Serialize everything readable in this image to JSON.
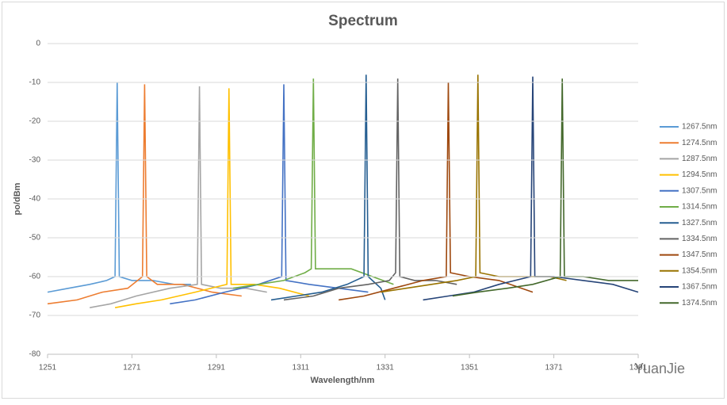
{
  "chart_data": {
    "type": "line",
    "title": "Spectrum",
    "x_label": "Wavelength/nm",
    "y_label": "po/dBm",
    "watermark": "YuanJie",
    "xlim": [
      1251,
      1391
    ],
    "xticks": [
      1251,
      1271,
      1291,
      1311,
      1331,
      1351,
      1371,
      1391
    ],
    "ylim": [
      -80,
      0
    ],
    "yticks": [
      -80,
      -70,
      -60,
      -50,
      -40,
      -30,
      -20,
      -10,
      0
    ],
    "grid": true,
    "legend": "right",
    "series": [
      {
        "name": "1267.5nm",
        "color": "#5b9bd5",
        "x": [
          1251,
          1256,
          1261,
          1265,
          1267,
          1267.5,
          1268,
          1271,
          1276,
          1281,
          1285
        ],
        "values": [
          -64,
          -63,
          -62,
          -61,
          -60,
          -10,
          -60,
          -61,
          -61,
          -62,
          -62
        ]
      },
      {
        "name": "1274.5nm",
        "color": "#ed7d31",
        "x": [
          1251,
          1258,
          1264,
          1270,
          1273.5,
          1274,
          1274.5,
          1277,
          1283,
          1290,
          1297
        ],
        "values": [
          -67,
          -66,
          -64,
          -63,
          -60,
          -10.5,
          -60,
          -62,
          -62,
          -64,
          -65
        ]
      },
      {
        "name": "1287.5nm",
        "color": "#a5a5a5",
        "x": [
          1261,
          1266,
          1272,
          1280,
          1286.5,
          1287,
          1287.5,
          1292,
          1298,
          1303
        ],
        "values": [
          -68,
          -67,
          -65,
          -63,
          -62,
          -11,
          -62,
          -63,
          -63,
          -64
        ]
      },
      {
        "name": "1294.5nm",
        "color": "#ffc000",
        "x": [
          1267,
          1272,
          1278,
          1286,
          1293.5,
          1294,
          1294.5,
          1300,
          1306,
          1313
        ],
        "values": [
          -68,
          -67,
          -66,
          -64,
          -62,
          -11.5,
          -62,
          -62,
          -63,
          -65
        ]
      },
      {
        "name": "1307.5nm",
        "color": "#4472c4",
        "x": [
          1280,
          1286,
          1293,
          1301,
          1306.5,
          1307,
          1307.5,
          1313,
          1320,
          1327
        ],
        "values": [
          -67,
          -66,
          -64,
          -62,
          -60,
          -10.5,
          -61,
          -62,
          -63,
          -64
        ]
      },
      {
        "name": "1314.5nm",
        "color": "#70ad47",
        "x": [
          1295,
          1301,
          1307,
          1312,
          1313.5,
          1314,
          1314.5,
          1318,
          1323,
          1328,
          1333
        ],
        "values": [
          -63,
          -62,
          -61,
          -59,
          -58,
          -9,
          -58,
          -58,
          -58,
          -60,
          -62
        ]
      },
      {
        "name": "1327.5nm",
        "color": "#255e91",
        "x": [
          1304,
          1310,
          1316,
          1322,
          1326,
          1326.5,
          1327,
          1330,
          1331
        ],
        "values": [
          -66,
          -65,
          -64,
          -62,
          -60,
          -8,
          -60,
          -63,
          -66
        ]
      },
      {
        "name": "1334.5nm",
        "color": "#636363",
        "x": [
          1307,
          1314,
          1320,
          1327,
          1332,
          1333.5,
          1334,
          1334.5,
          1338,
          1343,
          1348
        ],
        "values": [
          -66,
          -65,
          -63,
          -62,
          -61,
          -59,
          -9,
          -60,
          -61,
          -61,
          -62
        ]
      },
      {
        "name": "1347.5nm",
        "color": "#9e480e",
        "x": [
          1320,
          1326,
          1333,
          1340,
          1345.5,
          1346,
          1346.5,
          1351,
          1358,
          1366
        ],
        "values": [
          -66,
          -65,
          -63,
          -61,
          -60,
          -10,
          -59,
          -60,
          -61,
          -64
        ]
      },
      {
        "name": "1354.5nm",
        "color": "#997300",
        "x": [
          1330,
          1336,
          1342,
          1348,
          1352.5,
          1353,
          1353.5,
          1358,
          1364,
          1370,
          1374
        ],
        "values": [
          -64,
          -63,
          -62,
          -61,
          -60,
          -8,
          -59,
          -60,
          -60,
          -60,
          -61
        ]
      },
      {
        "name": "1367.5nm",
        "color": "#264478",
        "x": [
          1340,
          1346,
          1352,
          1358,
          1365.5,
          1366,
          1366.5,
          1371,
          1378,
          1385,
          1391
        ],
        "values": [
          -66,
          -65,
          -64,
          -62,
          -60,
          -8.5,
          -60,
          -60,
          -61,
          -62,
          -64
        ]
      },
      {
        "name": "1374.5nm",
        "color": "#43682b",
        "x": [
          1347,
          1353,
          1360,
          1366,
          1372.5,
          1373,
          1373.5,
          1378,
          1384,
          1391
        ],
        "values": [
          -65,
          -64,
          -63,
          -62,
          -60,
          -9,
          -60,
          -60,
          -61,
          -61
        ]
      }
    ]
  }
}
